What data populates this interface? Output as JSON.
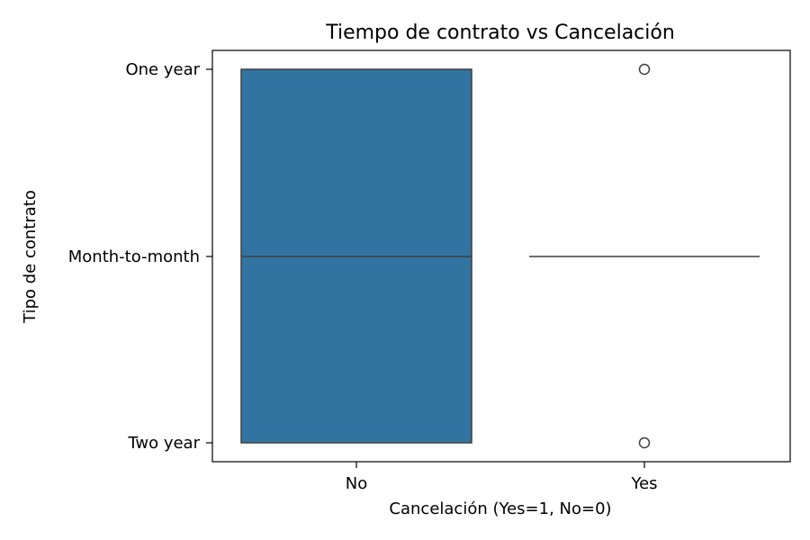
{
  "chart_data": {
    "type": "box",
    "title": "Tiempo de contrato vs Cancelación",
    "xlabel": "Cancelación (Yes=1, No=0)",
    "ylabel": "Tipo de contrato",
    "categories": [
      "No",
      "Yes"
    ],
    "y_categories": [
      "One year",
      "Month-to-month",
      "Two year"
    ],
    "grid": false,
    "colors": {
      "box": "#3274a1",
      "line": "#3f3f3f",
      "axes": "#000000"
    },
    "boxes": [
      {
        "category": "No",
        "q1": "Two year",
        "median": "Month-to-month",
        "q3": "One year",
        "whisker_low": "Two year",
        "whisker_high": "One year",
        "outliers": []
      },
      {
        "category": "Yes",
        "q1": "Month-to-month",
        "median": "Month-to-month",
        "q3": "Month-to-month",
        "whisker_low": "Month-to-month",
        "whisker_high": "Month-to-month",
        "outliers": [
          "One year",
          "Two year"
        ]
      }
    ]
  }
}
